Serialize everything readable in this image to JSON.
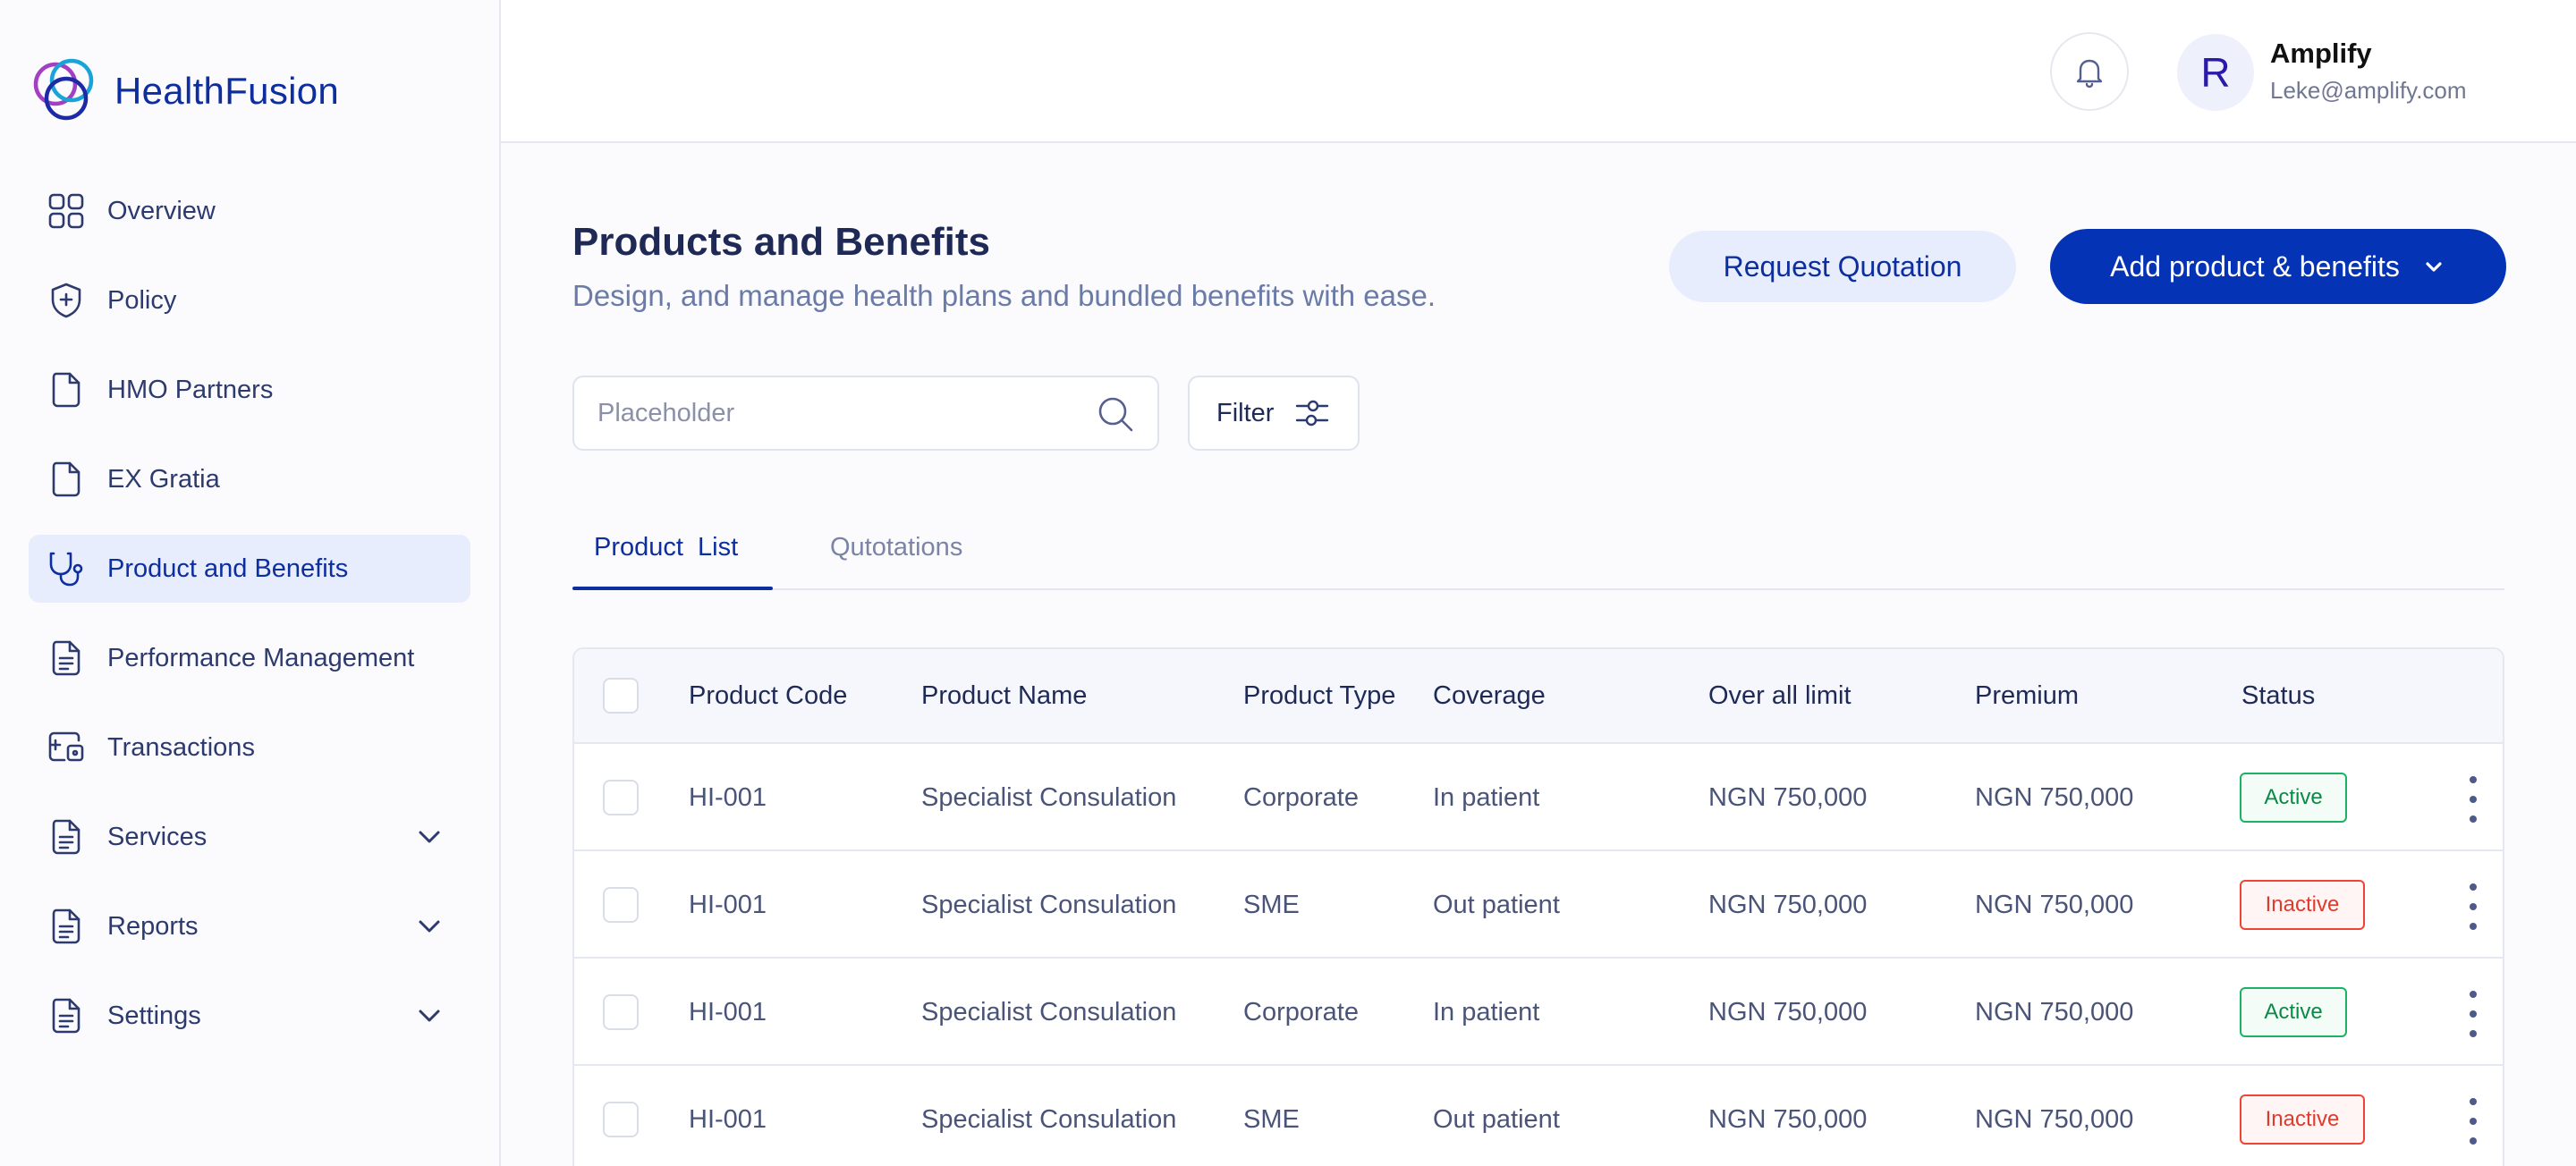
{
  "brand": {
    "name": "HealthFusion"
  },
  "sidebar": {
    "items": [
      {
        "label": "Overview",
        "icon": "grid-icon",
        "active": false
      },
      {
        "label": "Policy",
        "icon": "shield-plus-icon",
        "active": false
      },
      {
        "label": "HMO Partners",
        "icon": "file-icon",
        "active": false
      },
      {
        "label": "EX Gratia",
        "icon": "file-icon",
        "active": false
      },
      {
        "label": "Product and Benefits",
        "icon": "stethoscope-icon",
        "active": true
      },
      {
        "label": "Performance Management",
        "icon": "document-icon",
        "active": false
      },
      {
        "label": "Transactions",
        "icon": "wallet-icon",
        "active": false
      },
      {
        "label": "Services",
        "icon": "document-icon",
        "active": false,
        "expandable": true
      },
      {
        "label": "Reports",
        "icon": "document-icon",
        "active": false,
        "expandable": true
      },
      {
        "label": "Settings",
        "icon": "document-icon",
        "active": false,
        "expandable": true
      }
    ]
  },
  "header": {
    "user": {
      "initial": "R",
      "name": "Amplify",
      "email": "Leke@amplify.com"
    }
  },
  "page": {
    "title": "Products and Benefits",
    "subtitle": "Design, and manage health plans and bundled benefits with ease.",
    "request_quotation_label": "Request Quotation",
    "add_product_label": "Add product & benefits"
  },
  "search": {
    "placeholder": "Placeholder"
  },
  "filter": {
    "label": "Filter"
  },
  "tabs": [
    {
      "label": "Product  List",
      "active": true
    },
    {
      "label": "Qutotations",
      "active": false
    }
  ],
  "table": {
    "columns": [
      "Product Code",
      "Product Name",
      "Product Type",
      "Coverage",
      "Over all limit",
      "Premium",
      "Status"
    ],
    "rows": [
      {
        "code": "HI-001",
        "name": "Specialist Consulation",
        "type": "Corporate",
        "coverage": "In patient",
        "limit": "NGN 750,000",
        "premium": "NGN 750,000",
        "status": "Active"
      },
      {
        "code": "HI-001",
        "name": "Specialist Consulation",
        "type": "SME",
        "coverage": "Out patient",
        "limit": "NGN 750,000",
        "premium": "NGN 750,000",
        "status": "Inactive"
      },
      {
        "code": "HI-001",
        "name": "Specialist Consulation",
        "type": "Corporate",
        "coverage": "In patient",
        "limit": "NGN 750,000",
        "premium": "NGN 750,000",
        "status": "Active"
      },
      {
        "code": "HI-001",
        "name": "Specialist Consulation",
        "type": "SME",
        "coverage": "Out patient",
        "limit": "NGN 750,000",
        "premium": "NGN 750,000",
        "status": "Inactive"
      }
    ]
  },
  "colors": {
    "primary": "#0434b5",
    "brand_text": "#0d2e9f",
    "active_nav_bg": "#e7edfc",
    "active_badge": "#1bb266",
    "inactive_badge": "#ef4435"
  }
}
